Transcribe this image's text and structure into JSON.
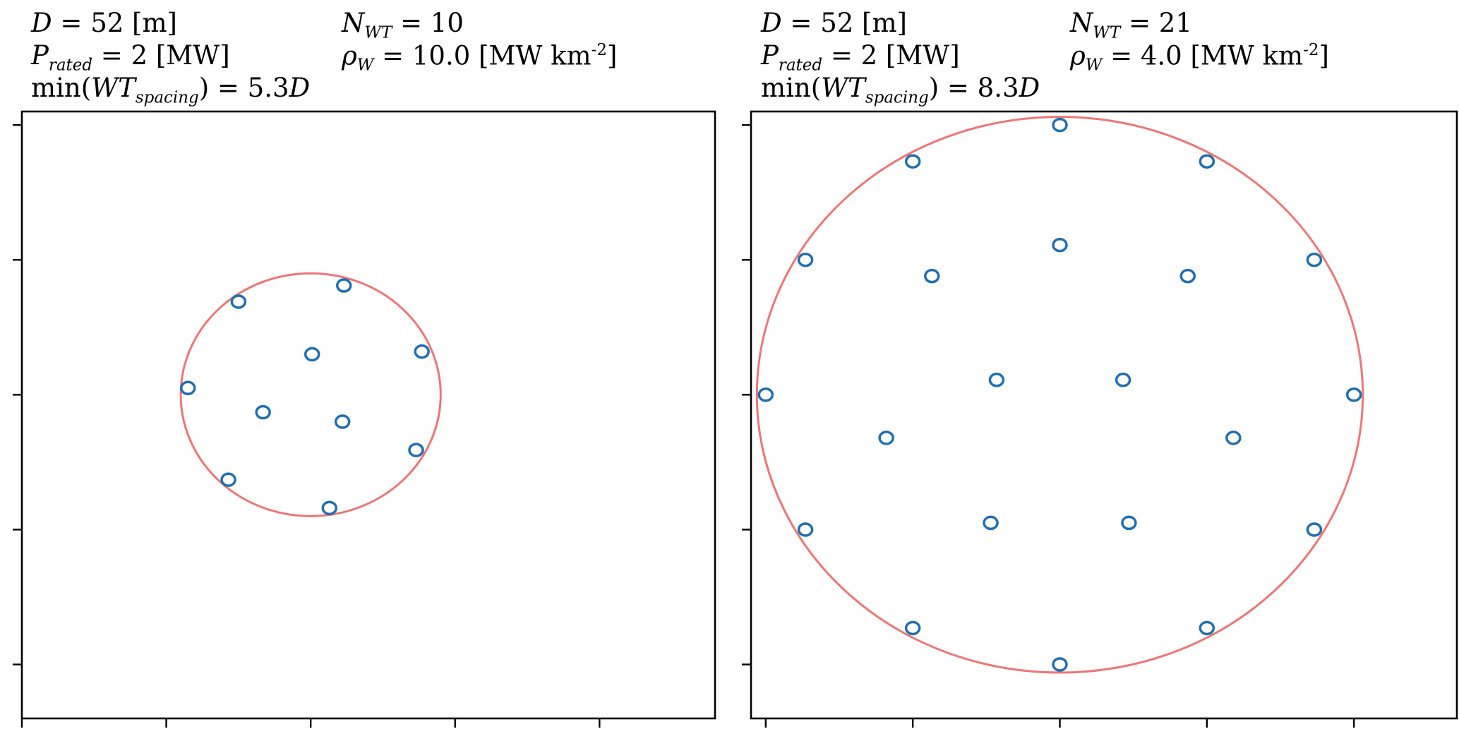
{
  "chart_data": [
    {
      "type": "scatter",
      "title": "",
      "xlabel": "",
      "ylabel": "",
      "annotations": {
        "diameter": "D = 52 [m]",
        "rated_power": "P_rated = 2 [MW]",
        "min_spacing": "min(WT_spacing) = 5.3D",
        "n_turbines": "N_WT = 10",
        "power_density": "ρ_W = 10.0 [MW km^-2]"
      },
      "boundary": {
        "shape": "circle",
        "cx": 0,
        "cy": 0,
        "r": 0.9,
        "color": "#f07575"
      },
      "marker_color": "#1f6fb4",
      "grid": false,
      "tick_labels_shown": false,
      "xlim": [
        -2.0,
        2.8
      ],
      "ylim": [
        -2.4,
        2.1
      ],
      "xticks": [
        -2,
        -1,
        0,
        1,
        2
      ],
      "yticks": [
        -2,
        -1,
        0,
        1,
        2
      ],
      "turbines": [
        {
          "x": 0.23,
          "y": 0.81
        },
        {
          "x": -0.5,
          "y": 0.69
        },
        {
          "x": 0.77,
          "y": 0.32
        },
        {
          "x": 0.01,
          "y": 0.3
        },
        {
          "x": -0.85,
          "y": 0.05
        },
        {
          "x": -0.33,
          "y": -0.13
        },
        {
          "x": 0.22,
          "y": -0.2
        },
        {
          "x": 0.73,
          "y": -0.41
        },
        {
          "x": -0.57,
          "y": -0.63
        },
        {
          "x": 0.13,
          "y": -0.84
        }
      ]
    },
    {
      "type": "scatter",
      "title": "",
      "xlabel": "",
      "ylabel": "",
      "annotations": {
        "diameter": "D = 52 [m]",
        "rated_power": "P_rated = 2 [MW]",
        "min_spacing": "min(WT_spacing) = 8.3D",
        "n_turbines": "N_WT = 21",
        "power_density": "ρ_W = 4.0 [MW km^-2]"
      },
      "boundary": {
        "shape": "circle",
        "cx": 0,
        "cy": 0,
        "r": 2.06,
        "color": "#f07575"
      },
      "marker_color": "#1f6fb4",
      "grid": false,
      "tick_labels_shown": false,
      "xlim": [
        -2.1,
        2.7
      ],
      "ylim": [
        -2.4,
        2.1
      ],
      "xticks": [
        -2,
        -1,
        0,
        1,
        2
      ],
      "yticks": [
        -2,
        -1,
        0,
        1,
        2
      ],
      "turbines": [
        {
          "x": 0.0,
          "y": 2.0
        },
        {
          "x": -1.0,
          "y": 1.73
        },
        {
          "x": 1.0,
          "y": 1.73
        },
        {
          "x": -1.73,
          "y": 1.0
        },
        {
          "x": 1.73,
          "y": 1.0
        },
        {
          "x": 0.0,
          "y": 1.11
        },
        {
          "x": -0.87,
          "y": 0.88
        },
        {
          "x": 0.87,
          "y": 0.88
        },
        {
          "x": -2.0,
          "y": 0.0
        },
        {
          "x": 2.0,
          "y": 0.0
        },
        {
          "x": -0.43,
          "y": 0.11
        },
        {
          "x": 0.43,
          "y": 0.11
        },
        {
          "x": -1.18,
          "y": -0.32
        },
        {
          "x": 1.18,
          "y": -0.32
        },
        {
          "x": -0.47,
          "y": -0.95
        },
        {
          "x": 0.47,
          "y": -0.95
        },
        {
          "x": -1.73,
          "y": -1.0
        },
        {
          "x": 1.73,
          "y": -1.0
        },
        {
          "x": -1.0,
          "y": -1.73
        },
        {
          "x": 1.0,
          "y": -1.73
        },
        {
          "x": 0.0,
          "y": -2.0
        }
      ]
    }
  ]
}
